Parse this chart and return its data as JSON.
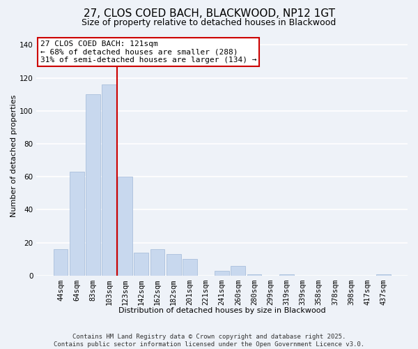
{
  "title": "27, CLOS COED BACH, BLACKWOOD, NP12 1GT",
  "subtitle": "Size of property relative to detached houses in Blackwood",
  "xlabel": "Distribution of detached houses by size in Blackwood",
  "ylabel": "Number of detached properties",
  "bar_labels": [
    "44sqm",
    "64sqm",
    "83sqm",
    "103sqm",
    "123sqm",
    "142sqm",
    "162sqm",
    "182sqm",
    "201sqm",
    "221sqm",
    "241sqm",
    "260sqm",
    "280sqm",
    "299sqm",
    "319sqm",
    "339sqm",
    "358sqm",
    "378sqm",
    "398sqm",
    "417sqm",
    "437sqm"
  ],
  "bar_values": [
    16,
    63,
    110,
    116,
    60,
    14,
    16,
    13,
    10,
    0,
    3,
    6,
    1,
    0,
    1,
    0,
    0,
    0,
    0,
    0,
    1
  ],
  "bar_color": "#c8d8ee",
  "bar_edge_color": "#a0b8d8",
  "vline_color": "#cc0000",
  "ylim": [
    0,
    145
  ],
  "yticks": [
    0,
    20,
    40,
    60,
    80,
    100,
    120,
    140
  ],
  "annotation_title": "27 CLOS COED BACH: 121sqm",
  "annotation_line1": "← 68% of detached houses are smaller (288)",
  "annotation_line2": "31% of semi-detached houses are larger (134) →",
  "annotation_box_color": "#ffffff",
  "annotation_box_edge": "#cc0000",
  "footer_line1": "Contains HM Land Registry data © Crown copyright and database right 2025.",
  "footer_line2": "Contains public sector information licensed under the Open Government Licence v3.0.",
  "background_color": "#eef2f8",
  "grid_color": "#ffffff",
  "title_fontsize": 11,
  "subtitle_fontsize": 9,
  "ylabel_fontsize": 8,
  "xlabel_fontsize": 8,
  "tick_fontsize": 7.5,
  "annotation_fontsize": 8,
  "footer_fontsize": 6.5
}
